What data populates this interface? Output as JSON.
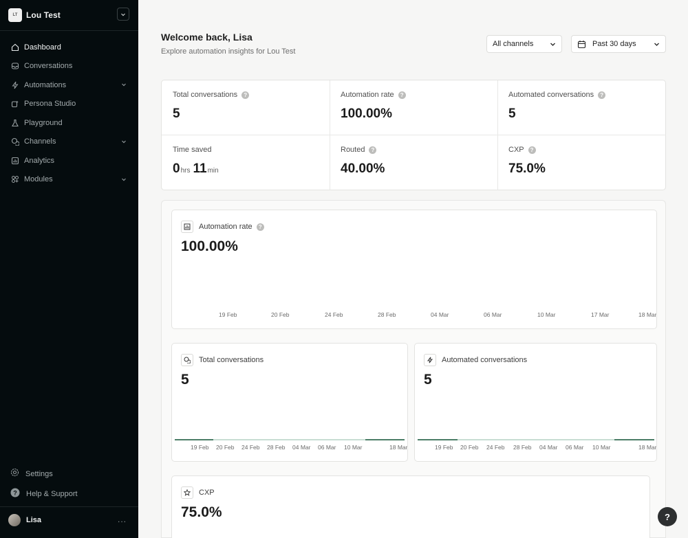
{
  "workspace": {
    "initials": "LT",
    "name": "Lou Test"
  },
  "nav": [
    {
      "label": "Dashboard",
      "icon": "home-icon"
    },
    {
      "label": "Conversations",
      "icon": "inbox-icon"
    },
    {
      "label": "Automations",
      "icon": "bolt-icon"
    },
    {
      "label": "Persona Studio",
      "icon": "persona-icon"
    },
    {
      "label": "Playground",
      "icon": "flask-icon"
    },
    {
      "label": "Channels",
      "icon": "chat-icon"
    },
    {
      "label": "Analytics",
      "icon": "chart-icon"
    },
    {
      "label": "Modules",
      "icon": "modules-icon"
    }
  ],
  "footer": {
    "settings": "Settings",
    "help": "Help & Support"
  },
  "user": {
    "name": "Lisa",
    "more": "..."
  },
  "header": {
    "welcome": "Welcome back, Lisa",
    "subtitle": "Explore automation insights for Lou Test"
  },
  "filters": {
    "channel": "All channels",
    "range": "Past 30 days"
  },
  "stats": [
    {
      "label": "Total conversations",
      "value": "5"
    },
    {
      "label": "Automation rate",
      "value": "100.00%"
    },
    {
      "label": "Automated conversations",
      "value": "5"
    },
    {
      "label": "Time saved",
      "hours": "0",
      "hours_unit": "hrs",
      "minutes": "11",
      "minutes_unit": "min"
    },
    {
      "label": "Routed",
      "value": "40.00%"
    },
    {
      "label": "CXP",
      "value": "75.0%"
    }
  ],
  "charts": {
    "automation_rate": {
      "title": "Automation rate",
      "value": "100.00%",
      "ticks": [
        "19 Feb",
        "20 Feb",
        "24 Feb",
        "28 Feb",
        "04 Mar",
        "06 Mar",
        "10 Mar",
        "17 Mar",
        "18 Mar"
      ]
    },
    "total_conversations": {
      "title": "Total conversations",
      "value": "5",
      "ticks": [
        "19 Feb",
        "20 Feb",
        "24 Feb",
        "28 Feb",
        "04 Mar",
        "06 Mar",
        "10 Mar",
        "18 Mar"
      ]
    },
    "automated_conversations": {
      "title": "Automated conversations",
      "value": "5",
      "ticks": [
        "19 Feb",
        "20 Feb",
        "24 Feb",
        "28 Feb",
        "04 Mar",
        "06 Mar",
        "10 Mar",
        "18 Mar"
      ]
    },
    "cxp": {
      "title": "CXP",
      "value": "75.0%"
    }
  },
  "help_fab": "?"
}
